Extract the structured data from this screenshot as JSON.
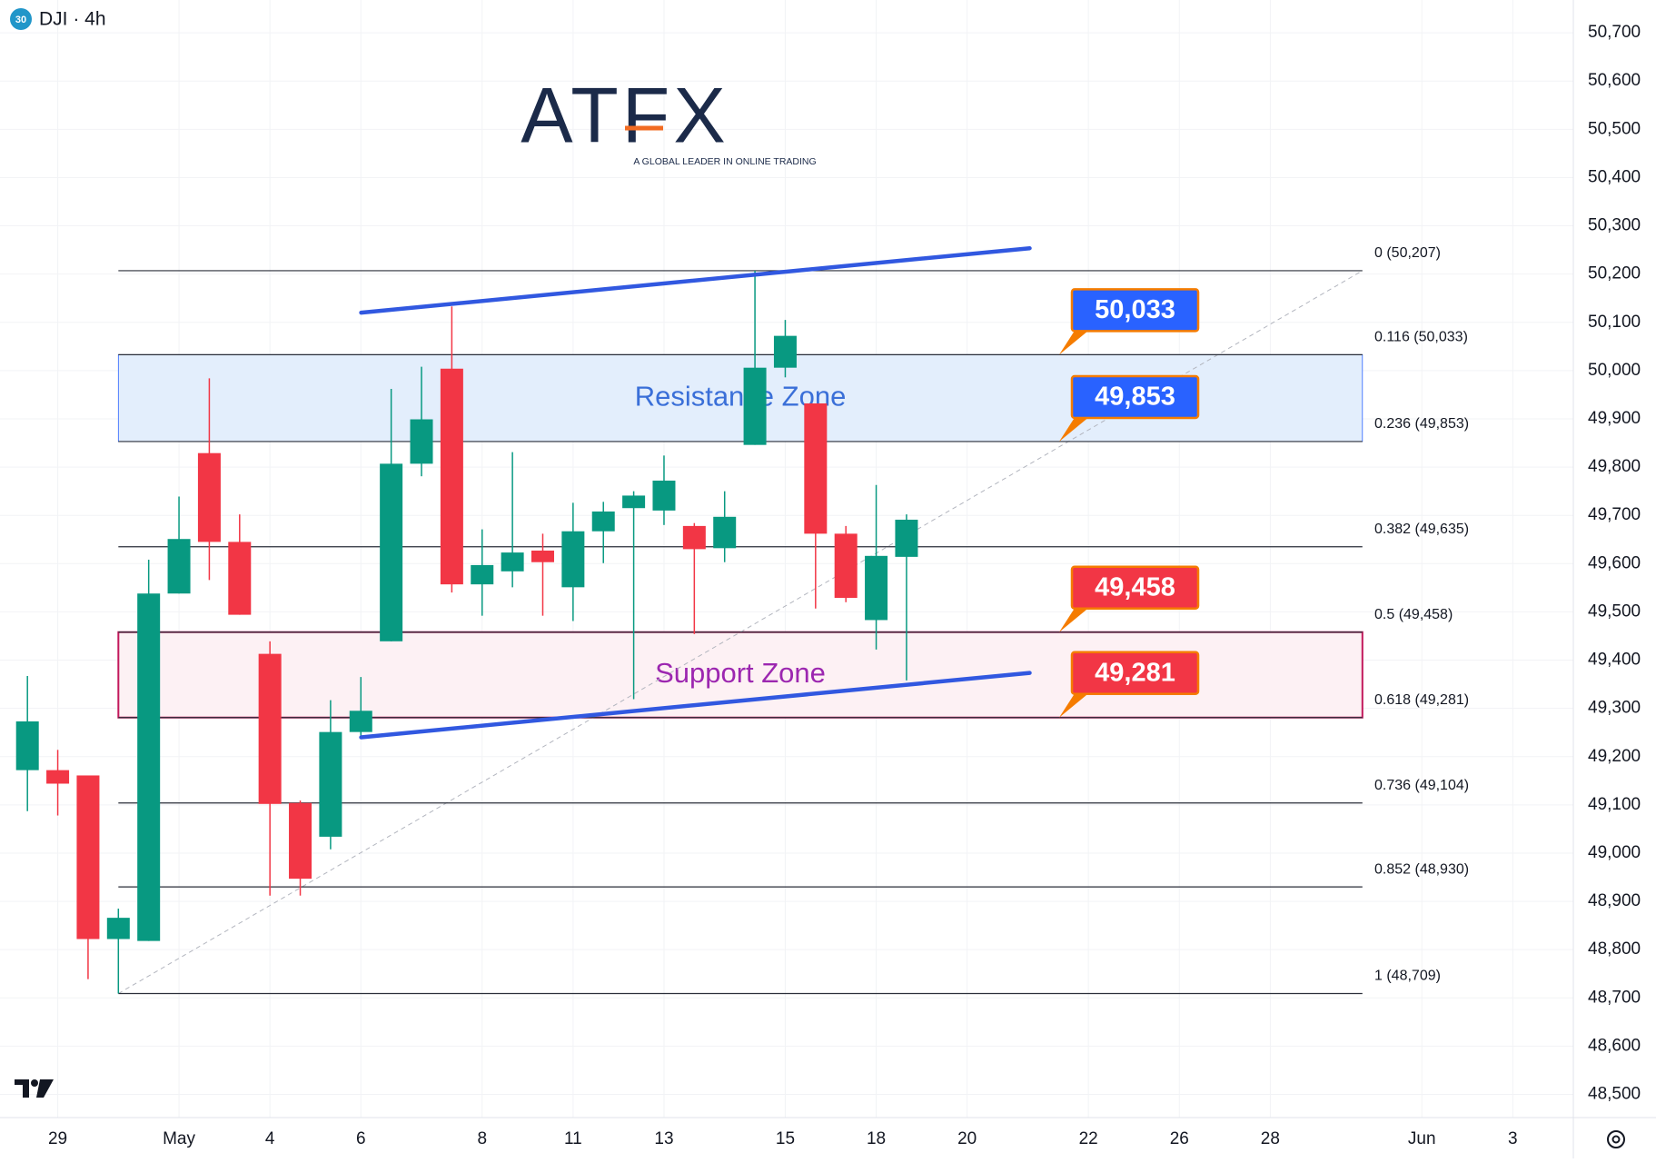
{
  "header": {
    "symbol_badge": "30",
    "title": "DJI · 4h"
  },
  "logo": {
    "name": "ATFX",
    "tagline": "A GLOBAL LEADER IN ONLINE TRADING"
  },
  "chart_data": {
    "type": "candlestick",
    "categories": [
      null,
      "29",
      null,
      null,
      null,
      "May",
      null,
      null,
      "4",
      null,
      null,
      "6",
      null,
      null,
      null,
      "8",
      null,
      null,
      "11",
      null,
      null,
      "13",
      null,
      null,
      null,
      "15",
      null,
      null,
      "18",
      null,
      null,
      "20",
      null,
      null,
      null,
      "22",
      null,
      null,
      "26",
      null,
      null,
      "28",
      null,
      null,
      null,
      null,
      "Jun",
      null,
      null,
      "3",
      null
    ],
    "open": [
      49172,
      49172,
      49161,
      48822,
      48818,
      49538,
      49829,
      49645,
      49413,
      49104,
      49034,
      49251,
      49439,
      49807,
      50004,
      49557,
      49584,
      49627,
      49551,
      49667,
      49715,
      49710,
      49678,
      49632,
      49846,
      50006,
      49932,
      49662,
      49483,
      49614,
      null,
      null,
      null,
      null,
      null,
      null,
      null,
      null,
      null,
      null,
      null,
      null,
      null,
      null,
      null,
      null,
      null,
      null,
      null,
      null,
      null
    ],
    "high": [
      49367,
      49214,
      49161,
      48885,
      49608,
      49739,
      49984,
      49702,
      49439,
      49109,
      49317,
      49365,
      49962,
      50008,
      50133,
      49671,
      49831,
      49662,
      49726,
      49728,
      49750,
      49824,
      49684,
      49750,
      50207,
      50105,
      49932,
      49678,
      49763,
      49702,
      null,
      null,
      null,
      null,
      null,
      null,
      null,
      null,
      null,
      null,
      null,
      null,
      null,
      null,
      null,
      null,
      null,
      null,
      null,
      null,
      null
    ],
    "low": [
      49087,
      49078,
      48739,
      48709,
      48818,
      49538,
      49566,
      49494,
      48912,
      48912,
      49008,
      49242,
      49439,
      49781,
      49540,
      49492,
      49551,
      49492,
      49481,
      49601,
      49319,
      49680,
      49454,
      49603,
      49846,
      49986,
      49507,
      49520,
      49422,
      49358,
      null,
      null,
      null,
      null,
      null,
      null,
      null,
      null,
      null,
      null,
      null,
      null,
      null,
      null,
      null,
      null,
      null,
      null,
      null,
      null,
      null
    ],
    "close": [
      49273,
      49144,
      48822,
      48866,
      49538,
      49651,
      49645,
      49494,
      49102,
      48947,
      49251,
      49295,
      49807,
      49899,
      49557,
      49597,
      49623,
      49603,
      49667,
      49708,
      49741,
      49772,
      49630,
      49697,
      50006,
      50072,
      49662,
      49529,
      49616,
      49691,
      null,
      null,
      null,
      null,
      null,
      null,
      null,
      null,
      null,
      null,
      null,
      null,
      null,
      null,
      null,
      null,
      null,
      null,
      null,
      null,
      null
    ],
    "up_color": "#089981",
    "down_color": "#f23645",
    "ylim": [
      48452,
      50768
    ],
    "yticks": [
      {
        "value": 48500,
        "label": "48,500"
      },
      {
        "value": 48600,
        "label": "48,600"
      },
      {
        "value": 48700,
        "label": "48,700"
      },
      {
        "value": 48800,
        "label": "48,800"
      },
      {
        "value": 48900,
        "label": "48,900"
      },
      {
        "value": 49000,
        "label": "49,000"
      },
      {
        "value": 49100,
        "label": "49,100"
      },
      {
        "value": 49200,
        "label": "49,200"
      },
      {
        "value": 49300,
        "label": "49,300"
      },
      {
        "value": 49400,
        "label": "49,400"
      },
      {
        "value": 49500,
        "label": "49,500"
      },
      {
        "value": 49600,
        "label": "49,600"
      },
      {
        "value": 49700,
        "label": "49,700"
      },
      {
        "value": 49800,
        "label": "49,800"
      },
      {
        "value": 49900,
        "label": "49,900"
      },
      {
        "value": 50000,
        "label": "50,000"
      },
      {
        "value": 50100,
        "label": "50,100"
      },
      {
        "value": 50200,
        "label": "50,200"
      },
      {
        "value": 50300,
        "label": "50,300"
      },
      {
        "value": 50400,
        "label": "50,400"
      },
      {
        "value": 50500,
        "label": "50,500"
      },
      {
        "value": 50600,
        "label": "50,600"
      },
      {
        "value": 50700,
        "label": "50,700"
      }
    ],
    "grid": true,
    "fib_color": "#2a2e39",
    "fib_levels": [
      {
        "price": 50207,
        "label": "0 (50,207)"
      },
      {
        "price": 50033,
        "label": "0.116 (50,033)"
      },
      {
        "price": 49853,
        "label": "0.236 (49,853)"
      },
      {
        "price": 49635,
        "label": "0.382 (49,635)"
      },
      {
        "price": 49458,
        "label": "0.5 (49,458)"
      },
      {
        "price": 49281,
        "label": "0.618 (49,281)"
      },
      {
        "price": 49104,
        "label": "0.736 (49,104)"
      },
      {
        "price": 48930,
        "label": "0.852 (48,930)"
      },
      {
        "price": 48709,
        "label": "1 (48,709)"
      }
    ],
    "zones": [
      {
        "label": "Resistance Zone",
        "from": 49853,
        "to": 50033,
        "fill": "#e3eefc",
        "stroke": "#2962ff",
        "text_color": "#3a6fd8"
      },
      {
        "label": "Support Zone",
        "from": 49281,
        "to": 49458,
        "fill": "#fdf1f4",
        "stroke": "#c2185b",
        "text_color": "#9c27b0"
      }
    ],
    "trend_color": "#3158e0",
    "callouts": [
      {
        "value": 50033,
        "label": "50,033",
        "color": "#2962ff"
      },
      {
        "value": 49853,
        "label": "49,853",
        "color": "#2962ff"
      },
      {
        "value": 49458,
        "label": "49,458",
        "color": "#f23645"
      },
      {
        "value": 49281,
        "label": "49,281",
        "color": "#f23645"
      }
    ]
  }
}
